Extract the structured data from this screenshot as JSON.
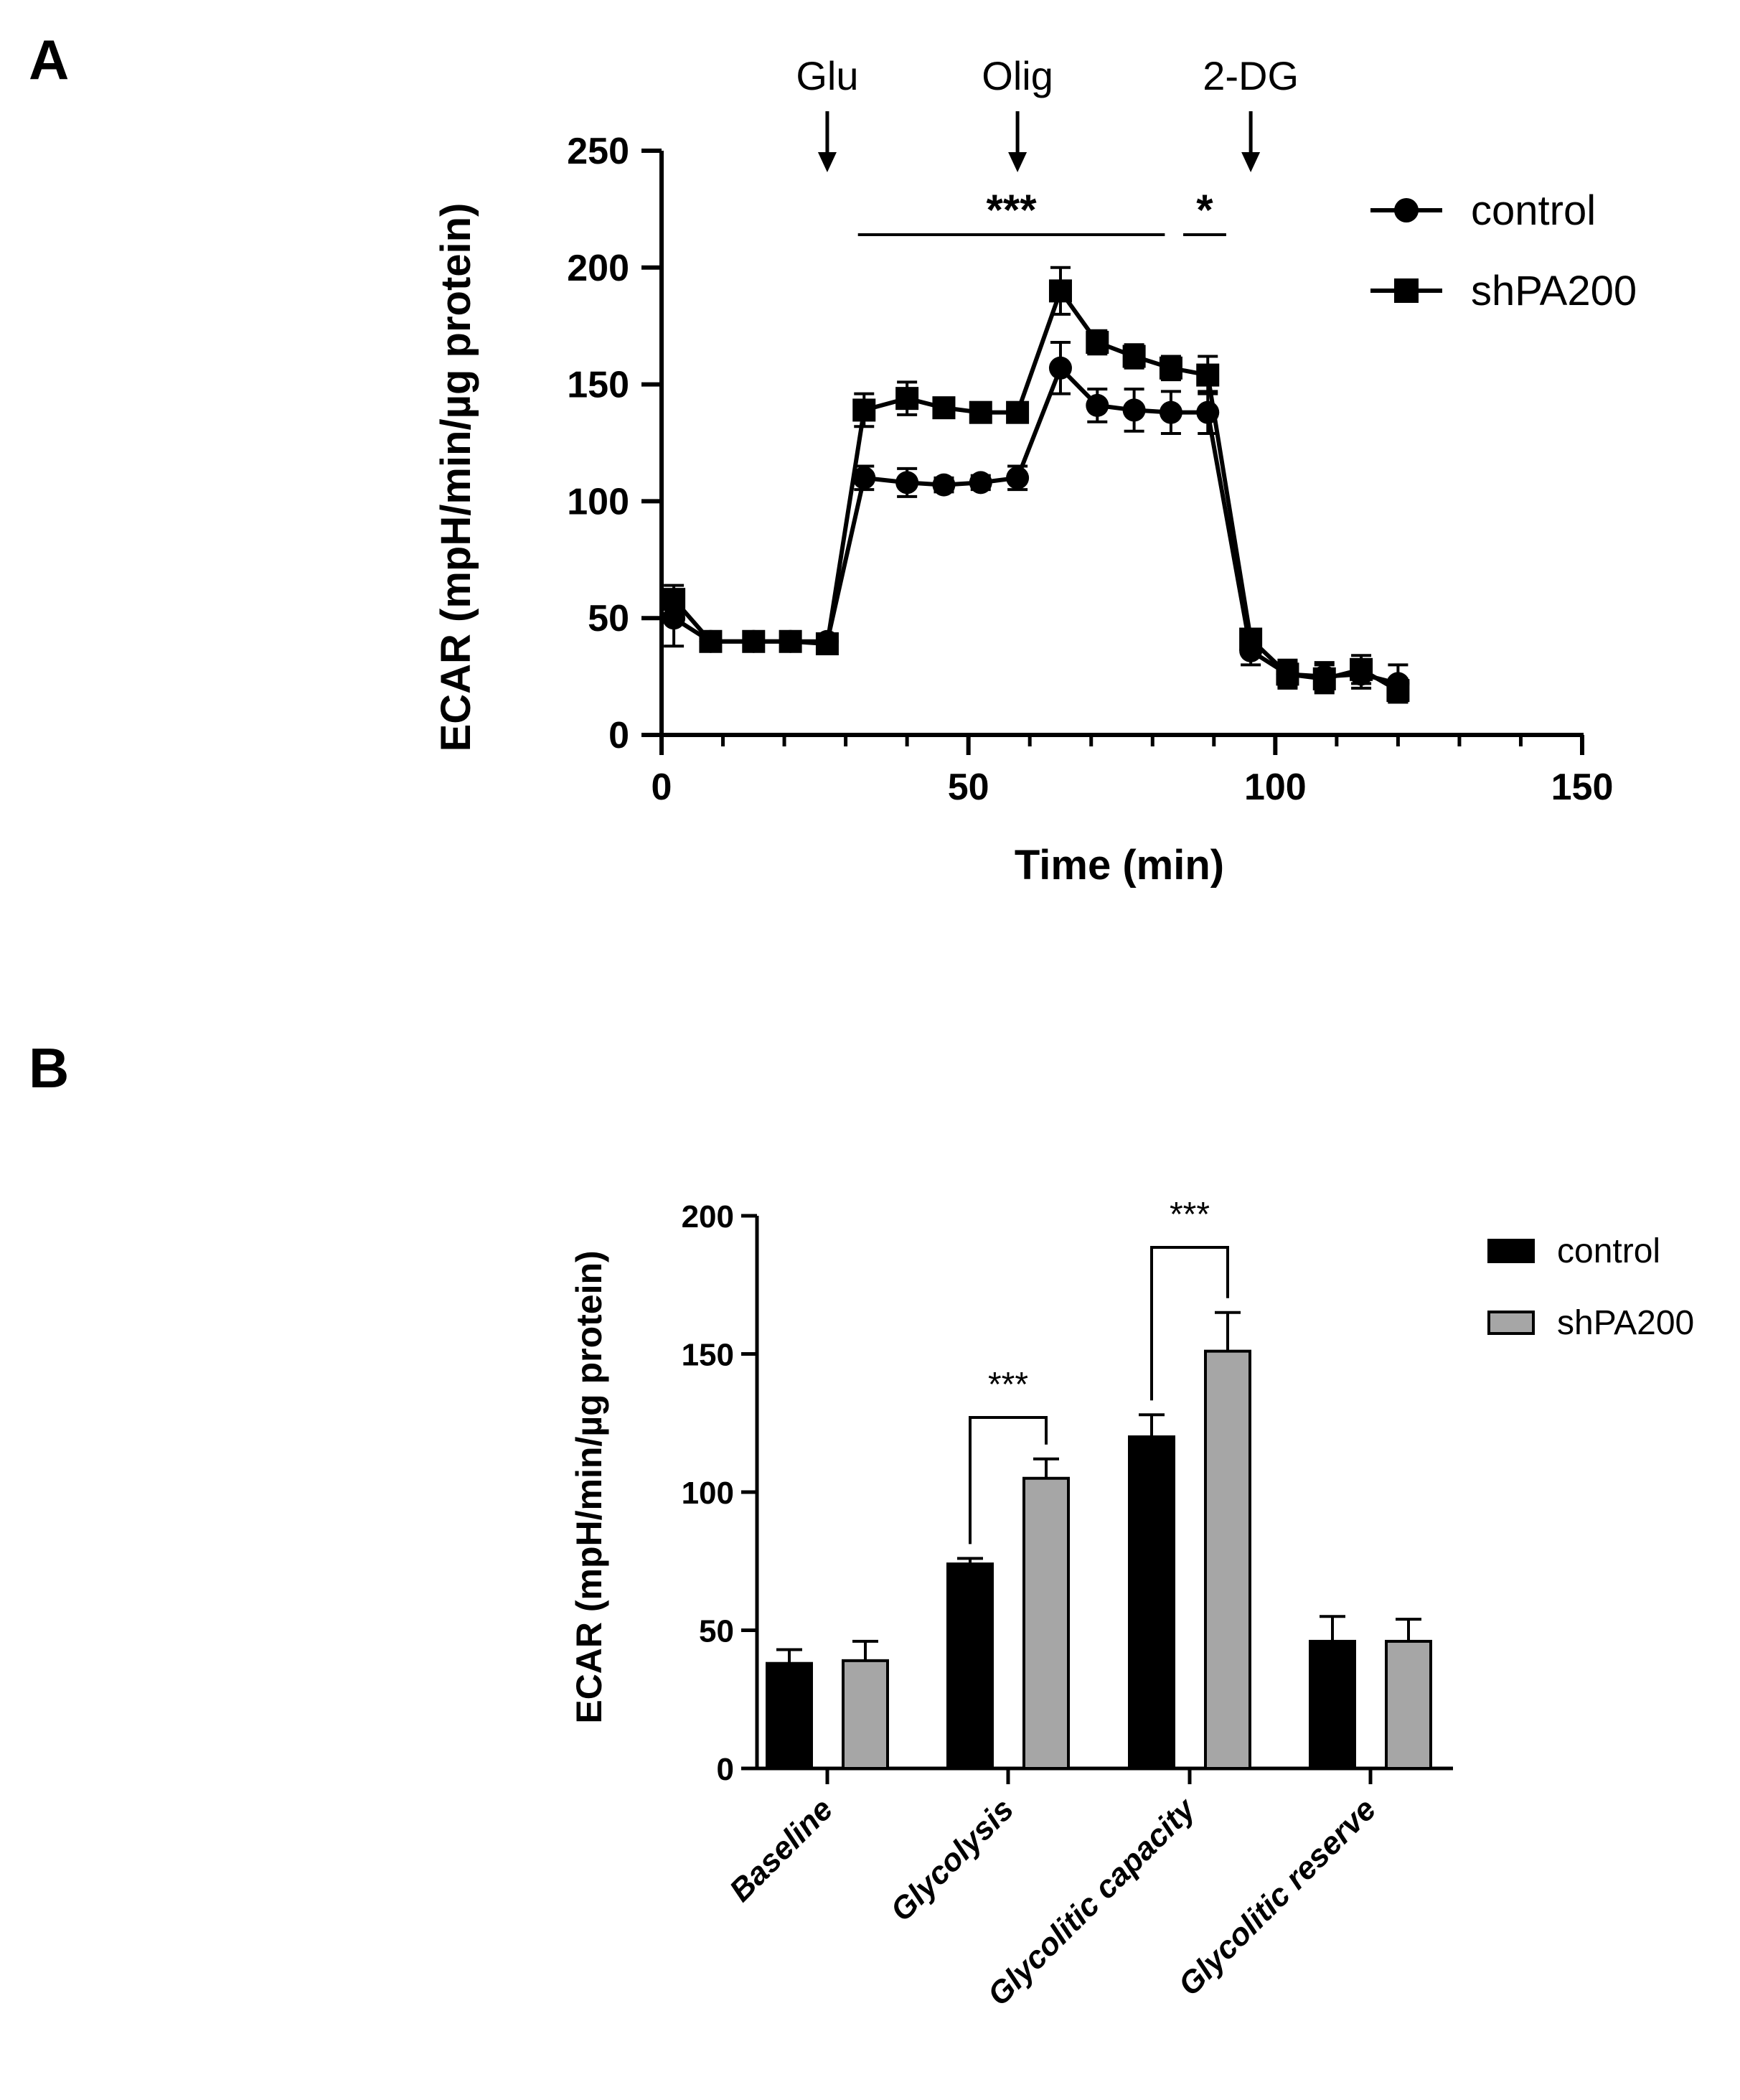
{
  "panels": {
    "a": "A",
    "b": "B"
  },
  "chart_data": [
    {
      "type": "line",
      "panel": "A",
      "xlabel": "Time (min)",
      "ylabel": "ECAR (mpH/min/µg protein)",
      "xlim": [
        0,
        150
      ],
      "ylim": [
        0,
        250
      ],
      "xticks": [
        0,
        50,
        100,
        150
      ],
      "yticks": [
        0,
        50,
        100,
        150,
        200,
        250
      ],
      "xtick_labels": [
        "0",
        "50",
        "100",
        "150"
      ],
      "ytick_labels": [
        "0",
        "50",
        "100",
        "150",
        "200",
        "250"
      ],
      "injections": [
        {
          "label": "Glu",
          "x": 27
        },
        {
          "label": "Olig",
          "x": 58
        },
        {
          "label": "2-DG",
          "x": 96
        }
      ],
      "significance": [
        {
          "label": "***",
          "x_start": 32,
          "x_end": 82
        },
        {
          "label": "*",
          "x_start": 85,
          "x_end": 92
        }
      ],
      "x": [
        2,
        8,
        15,
        21,
        27,
        33,
        40,
        46,
        52,
        58,
        65,
        71,
        77,
        83,
        89,
        96,
        102,
        108,
        114,
        120
      ],
      "series": [
        {
          "name": "control",
          "marker": "circle",
          "values": [
            50,
            40,
            40,
            40,
            40,
            110,
            108,
            107,
            108,
            110,
            157,
            141,
            139,
            138,
            138,
            36,
            26,
            25,
            26,
            22
          ],
          "errors": [
            12,
            3,
            3,
            3,
            3,
            5,
            6,
            3,
            3,
            5,
            11,
            7,
            9,
            9,
            9,
            6,
            5,
            6,
            6,
            8
          ]
        },
        {
          "name": "shPA200",
          "marker": "square",
          "values": [
            58,
            40,
            40,
            40,
            39,
            139,
            144,
            140,
            138,
            138,
            190,
            168,
            162,
            157,
            154,
            41,
            26,
            24,
            28,
            19
          ],
          "errors": [
            6,
            3,
            3,
            3,
            3,
            7,
            7,
            4,
            4,
            4,
            10,
            5,
            5,
            5,
            8,
            4,
            6,
            6,
            6,
            5
          ]
        }
      ],
      "legend": [
        "control",
        "shPA200"
      ]
    },
    {
      "type": "bar",
      "panel": "B",
      "ylabel": "ECAR (mpH/min/µg protein)",
      "ylim": [
        0,
        200
      ],
      "yticks": [
        0,
        50,
        100,
        150,
        200
      ],
      "ytick_labels": [
        "0",
        "50",
        "100",
        "150",
        "200"
      ],
      "categories": [
        "Baseline",
        "Glycolysis",
        "Glycolitic capacity",
        "Glycolitic reserve"
      ],
      "series": [
        {
          "name": "control",
          "color": "#000000",
          "values": [
            38,
            74,
            120,
            46
          ],
          "errors": [
            5,
            2,
            8,
            9
          ]
        },
        {
          "name": "shPA200",
          "color": "#a6a6a6",
          "values": [
            39,
            105,
            151,
            46
          ],
          "errors": [
            7,
            7,
            14,
            8
          ]
        }
      ],
      "significance": [
        {
          "category": "Glycolysis",
          "label": "***"
        },
        {
          "category": "Glycolitic capacity",
          "label": "***"
        }
      ],
      "legend": [
        "control",
        "shPA200"
      ]
    }
  ]
}
